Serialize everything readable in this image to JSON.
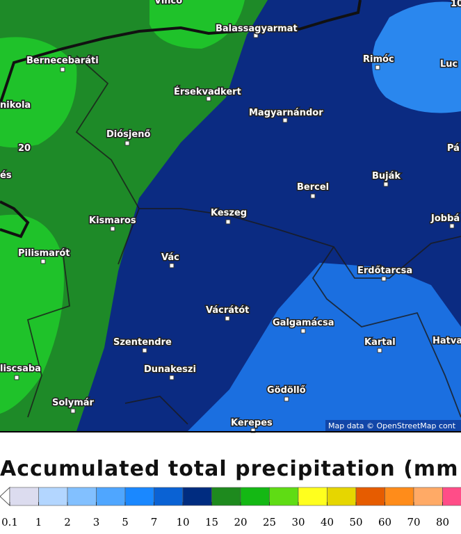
{
  "map": {
    "places": [
      "Vinco",
      "Balassagyarmat",
      "Bernecebaráti",
      "Rimóc",
      "Luc",
      "Érsekvadkert",
      "nikola",
      "Magyarnándor",
      "Diósjenő",
      "Pá",
      "és",
      "Buják",
      "Bercel",
      "Keszeg",
      "Kismaros",
      "Jobbá",
      "Pilismarót",
      "Vác",
      "Erdőtarcsa",
      "Vácrátót",
      "Galgamácsa",
      "Szentendre",
      "Kartal",
      "Hatva",
      "liscsaba",
      "Dunakeszi",
      "Gödöllő",
      "Solymár",
      "Kerepes"
    ],
    "contour_labels": [
      "20",
      "10"
    ],
    "attribution": "Map data © OpenStreetMap cont"
  },
  "legend": {
    "title": "Accumulated total precipitation (mm",
    "ticks": [
      0.1,
      1,
      2,
      3,
      5,
      7,
      10,
      15,
      20,
      25,
      30,
      40,
      50,
      60,
      70,
      80
    ],
    "colors": [
      "#dcdcef",
      "#b3d6ff",
      "#82c0ff",
      "#4fa6ff",
      "#1a88ff",
      "#0a62d4",
      "#002c80",
      "#1e8a1e",
      "#14b814",
      "#5fdc14",
      "#ffff1e",
      "#e6d600",
      "#e65c00",
      "#ff8c1a",
      "#ffaa66",
      "#ff4d88"
    ]
  }
}
